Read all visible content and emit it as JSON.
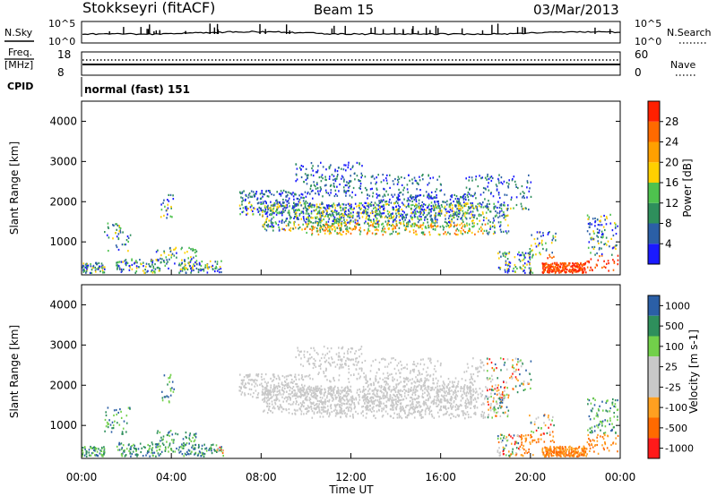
{
  "header": {
    "station": "Stokkseyri (fitACF)",
    "beam": "Beam 15",
    "date": "03/Mar/2013"
  },
  "summary": {
    "nsky_label": "N.Sky",
    "nsearch_label": "N.Search",
    "nsky_ticks": [
      "10^5",
      "10^0"
    ],
    "nsearch_ticks": [
      "10^5",
      "10^0"
    ],
    "freq_label_line1": "Freq.",
    "freq_label_line2": "[MHz]",
    "freq_ticks": [
      "18",
      "8"
    ],
    "nave_label": "Nave",
    "nave_ticks": [
      "60",
      "0"
    ],
    "cpid_label": "CPID",
    "cpid_value": "normal (fast) 151"
  },
  "colors": {
    "power": [
      "#1a1aff",
      "#2b5fa6",
      "#2e8f5c",
      "#4ec24e",
      "#ffd000",
      "#ffa000",
      "#ff6a00",
      "#ff2000"
    ],
    "velocity": [
      "#ff1a1a",
      "#ff6a00",
      "#ffa020",
      "#c8c8c8",
      "#c8c8c8",
      "#72d04a",
      "#2e8f5c",
      "#2b5fa6"
    ]
  },
  "chart_data": [
    {
      "type": "heatmap",
      "panel": "power",
      "xlabel": "",
      "ylabel": "Slant Range [km]",
      "xlim": [
        "00:00",
        "24:00"
      ],
      "ylim": [
        180,
        4500
      ],
      "y_ticks": [
        "1000",
        "2000",
        "3000",
        "4000"
      ],
      "colorbar_label": "Power [dB]",
      "colorbar_ticks": [
        "4",
        "8",
        "12",
        "16",
        "20",
        "24",
        "28"
      ],
      "colorbar_range": [
        0,
        30
      ]
    },
    {
      "type": "heatmap",
      "panel": "velocity",
      "xlabel": "Time UT",
      "ylabel": "Slant Range [km]",
      "xlim": [
        "00:00",
        "24:00"
      ],
      "ylim": [
        180,
        4500
      ],
      "x_ticks": [
        "00:00",
        "04:00",
        "08:00",
        "12:00",
        "16:00",
        "20:00",
        "00:00"
      ],
      "y_ticks": [
        "1000",
        "2000",
        "3000",
        "4000"
      ],
      "colorbar_label": "Velocity [m s-1]",
      "colorbar_ticks": [
        "1000",
        "500",
        "100",
        "25",
        "-25",
        "-100",
        "-500",
        "-1000"
      ]
    }
  ]
}
